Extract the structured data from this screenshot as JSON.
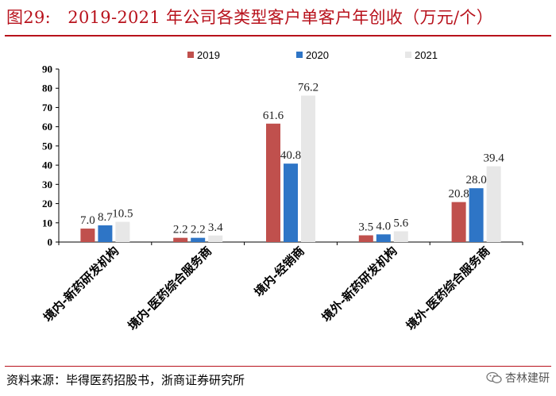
{
  "figure": {
    "title": "图29:　2019-2021 年公司各类型客户单客户年创收（万元/个）",
    "source": "资料来源：毕得医药招股书，浙商证券研究所",
    "brand": "杏林建研",
    "brand_icon": "wechat-icon"
  },
  "chart_data": {
    "type": "bar",
    "title": "2019-2021 年公司各类型客户单客户年创收（万元/个）",
    "categories": [
      "境内-新药研发机构",
      "境内-医药综合服务商",
      "境内-经销商",
      "境外-新药研发机构",
      "境外-医药综合服务商"
    ],
    "series": [
      {
        "name": "2019",
        "color": "#c0504d",
        "values": [
          7.0,
          2.2,
          61.6,
          3.5,
          20.8
        ],
        "labels": [
          "7.0",
          "2.2",
          "61.6",
          "3.5",
          "20.8"
        ]
      },
      {
        "name": "2020",
        "color": "#2e75c6",
        "values": [
          8.7,
          2.2,
          40.8,
          4.0,
          28.0
        ],
        "labels": [
          "8.7",
          "2.2",
          "40.8",
          "4.0",
          "28.0"
        ]
      },
      {
        "name": "2021",
        "color": "#e7e7e7",
        "values": [
          10.5,
          3.4,
          76.2,
          5.6,
          39.4
        ],
        "labels": [
          "10.5",
          "3.4",
          "76.2",
          "5.6",
          "39.4"
        ]
      }
    ],
    "ylim": [
      0,
      90
    ],
    "yticks": [
      0,
      10,
      20,
      30,
      40,
      50,
      60,
      70,
      80,
      90
    ],
    "xlabel": "",
    "ylabel": "",
    "legend_position": "top",
    "grid": false
  }
}
